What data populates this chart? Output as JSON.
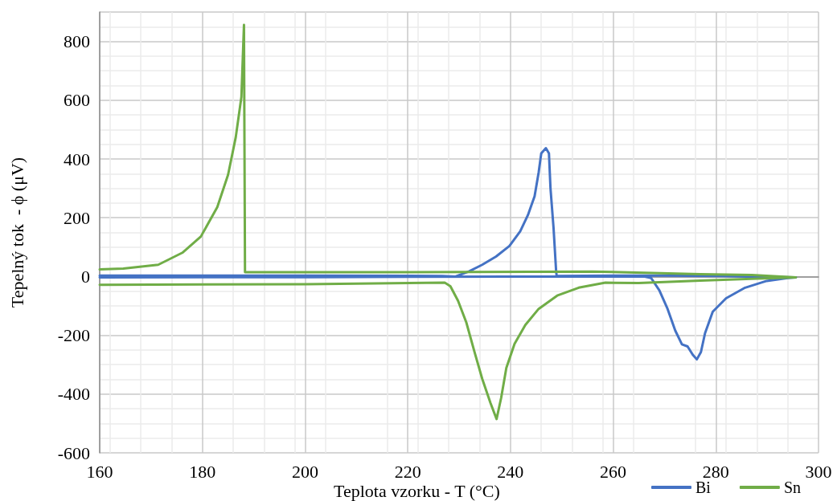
{
  "chart_data": {
    "type": "line",
    "xlabel": "Teplota vzorku - T (°C)",
    "ylabel": "Tepelný tok  - ϕ (μV)",
    "xlim": [
      160,
      300
    ],
    "xticks": [
      160,
      180,
      200,
      220,
      240,
      260,
      280,
      300
    ],
    "ylim": [
      -600,
      900
    ],
    "yticks": [
      -600,
      -400,
      -200,
      0,
      200,
      400,
      600,
      800
    ],
    "grid": true,
    "legend": "bottom right",
    "marker": "none",
    "line_style": "solid",
    "series": [
      {
        "name": "Bi",
        "color": "#4472c4",
        "x": [
          160,
          200,
          240,
          266,
          267.4,
          269.0,
          270.6,
          272.1,
          273.4,
          274.5,
          275.5,
          276.3,
          277.1,
          277.9,
          279.4,
          282.0,
          285.7,
          289.9,
          294.0,
          295.6,
          280,
          270,
          260,
          249.0,
          248.9,
          248.4,
          247.8,
          247.5,
          246.9,
          246.0,
          245.5,
          244.7,
          243.4,
          241.9,
          239.8,
          237.2,
          234.5,
          231.9,
          229.3,
          226.7,
          200,
          160
        ],
        "values": [
          -3,
          -2,
          0,
          0,
          -5,
          -47,
          -110,
          -184,
          -231,
          -238,
          -266,
          -282,
          -257,
          -193,
          -120,
          -74,
          -38,
          -15,
          -5,
          -3,
          2,
          3,
          3,
          2,
          17,
          164,
          300,
          419,
          437,
          419,
          355,
          273,
          209,
          154,
          104,
          68,
          40,
          17,
          0,
          2,
          3,
          3
        ]
      },
      {
        "name": "Sn",
        "color": "#70ad47",
        "x": [
          160,
          200,
          227.2,
          228.3,
          229.8,
          231.4,
          233.0,
          234.5,
          236.1,
          237.3,
          238.2,
          239.2,
          240.8,
          242.9,
          245.5,
          249.1,
          253.3,
          258.5,
          265,
          277,
          287,
          295.6,
          287,
          277,
          256,
          220,
          190,
          188.3,
          188.1,
          187.6,
          186.5,
          185.0,
          182.9,
          179.7,
          176.1,
          171.4,
          164.6,
          160
        ],
        "values": [
          -28,
          -26,
          -21,
          -33,
          -83,
          -156,
          -257,
          -348,
          -430,
          -485,
          -412,
          -311,
          -229,
          -165,
          -110,
          -65,
          -38,
          -21,
          -22,
          -14,
          -8,
          -3,
          5,
          8,
          17,
          15,
          15,
          15,
          856,
          611,
          474,
          346,
          236,
          136,
          81,
          40,
          27,
          24
        ]
      }
    ]
  }
}
